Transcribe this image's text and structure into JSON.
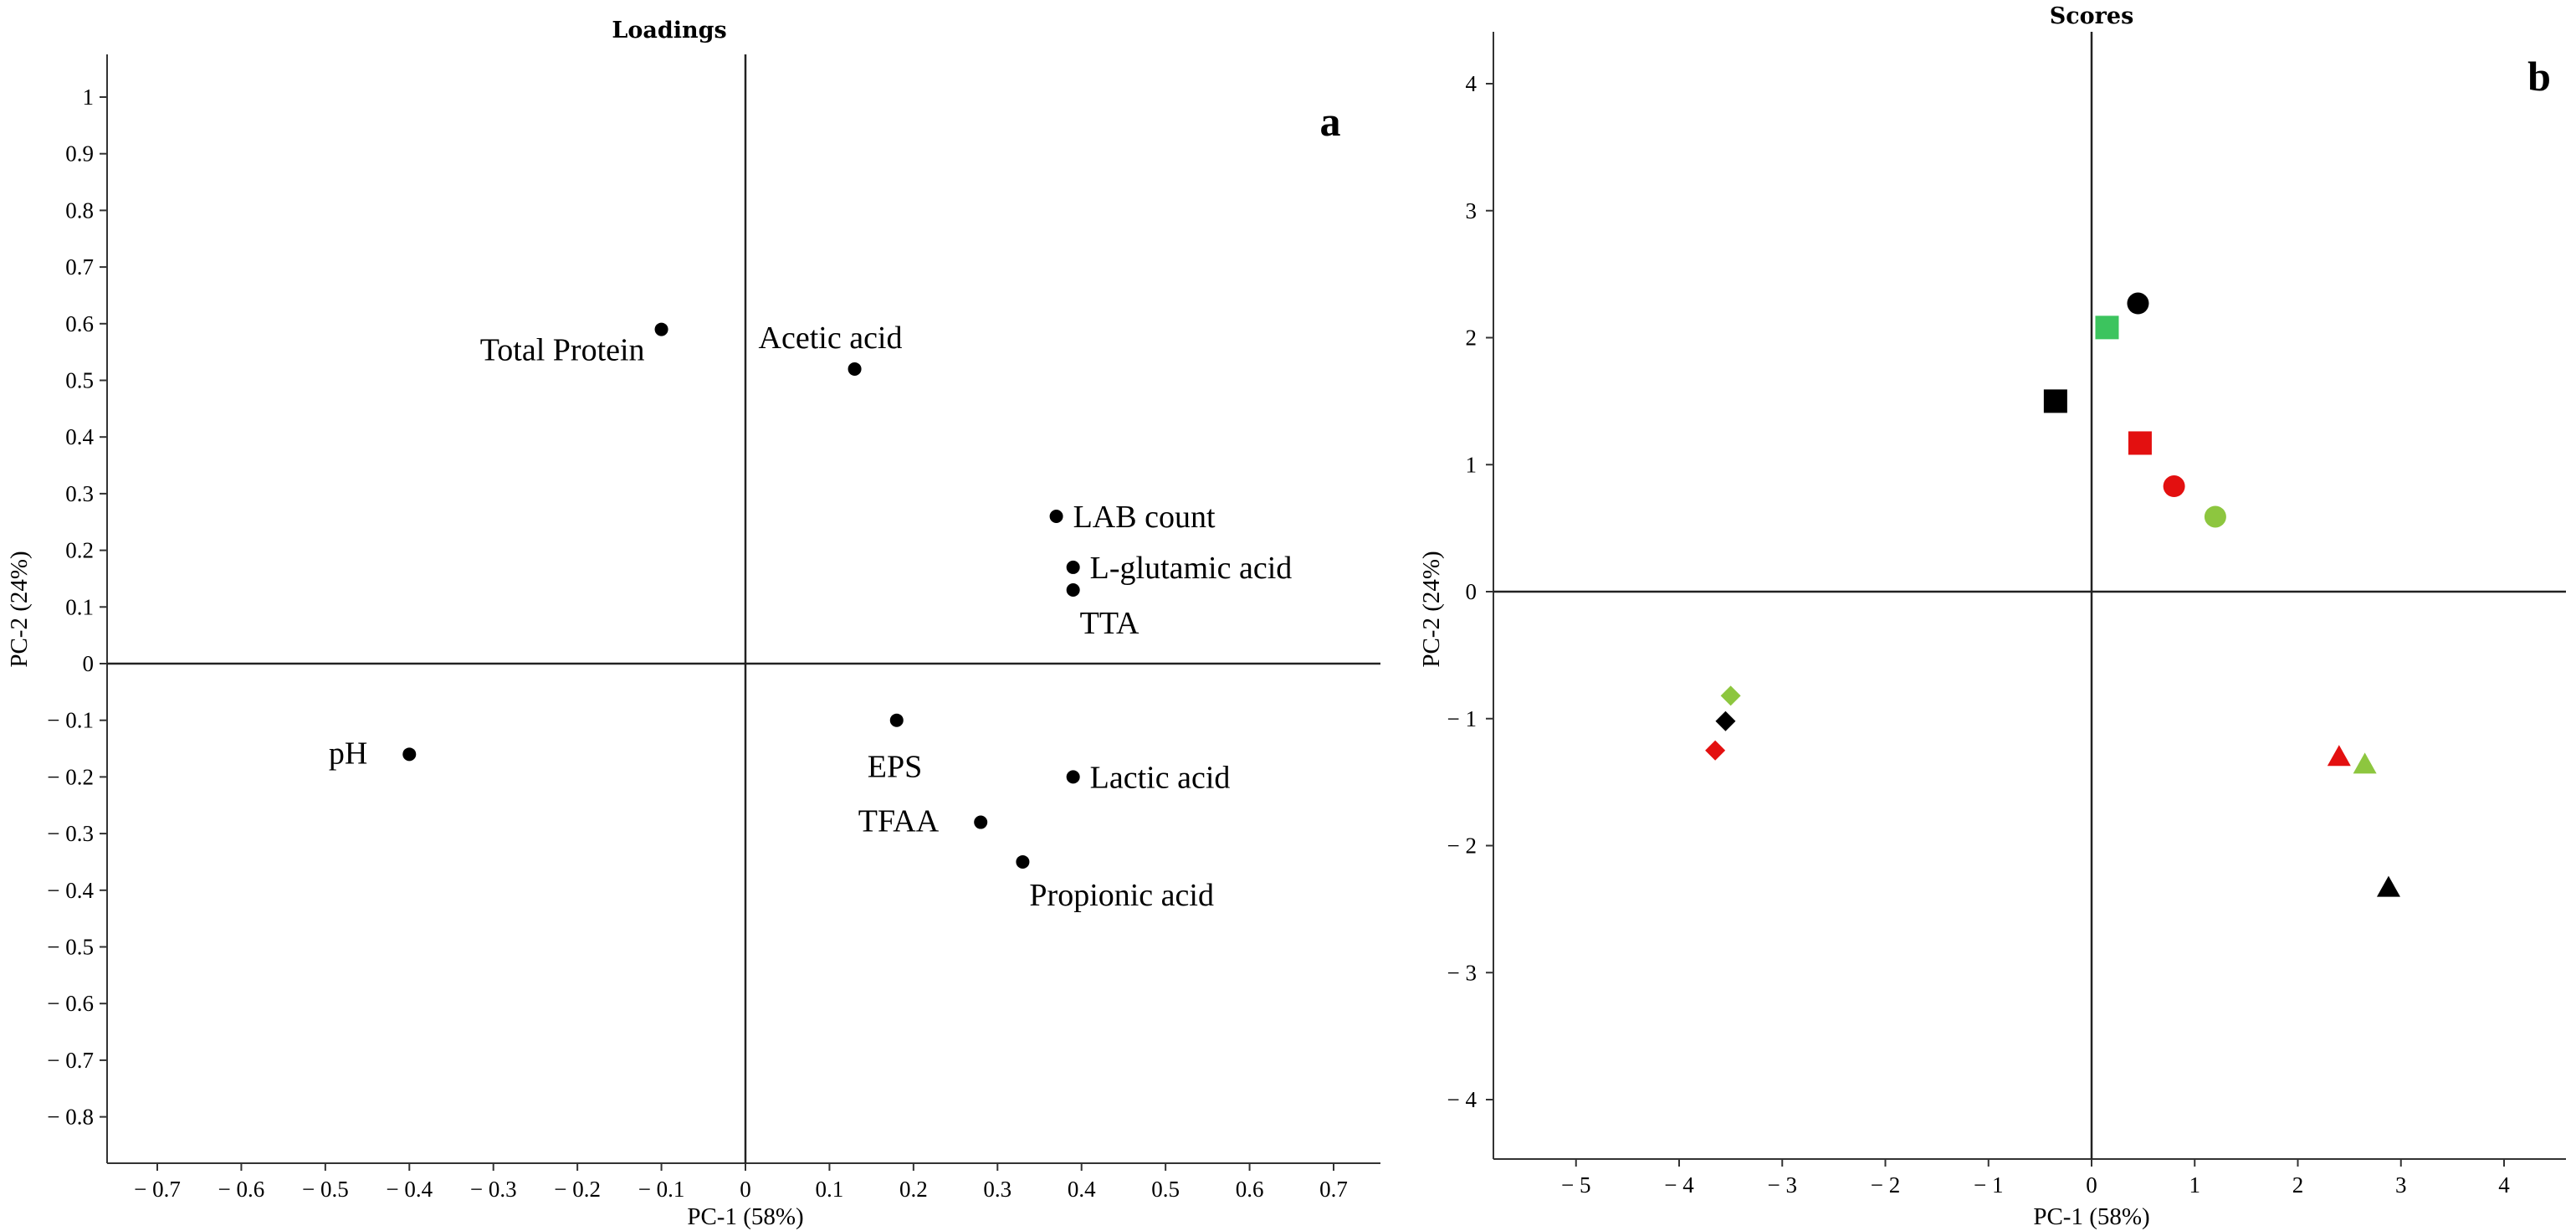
{
  "panel_a": {
    "title": "Loadings",
    "letter": "a",
    "xlabel": "PC-1 (58%)",
    "ylabel": "PC-2 (24%)"
  },
  "panel_b": {
    "title": "Scores",
    "letter": "b",
    "xlabel": "PC-1 (58%)",
    "ylabel": "PC-2 (24%)"
  },
  "chart_data": [
    {
      "type": "scatter",
      "title": "Loadings",
      "xlabel": "PC-1 (58%)",
      "ylabel": "PC-2 (24%)",
      "xlim": [
        -0.77,
        0.77
      ],
      "ylim": [
        -0.9,
        1.08
      ],
      "x_ticks": [
        {
          "v": -0.7,
          "label": "− 0.7"
        },
        {
          "v": -0.6,
          "label": "− 0.6"
        },
        {
          "v": -0.5,
          "label": "− 0.5"
        },
        {
          "v": -0.4,
          "label": "− 0.4"
        },
        {
          "v": -0.3,
          "label": "− 0.3"
        },
        {
          "v": -0.2,
          "label": "− 0.2"
        },
        {
          "v": -0.1,
          "label": "− 0.1"
        },
        {
          "v": 0,
          "label": "0"
        },
        {
          "v": 0.1,
          "label": "0.1"
        },
        {
          "v": 0.2,
          "label": "0.2"
        },
        {
          "v": 0.3,
          "label": "0.3"
        },
        {
          "v": 0.4,
          "label": "0.4"
        },
        {
          "v": 0.5,
          "label": "0.5"
        },
        {
          "v": 0.6,
          "label": "0.6"
        },
        {
          "v": 0.7,
          "label": "0.7"
        }
      ],
      "y_ticks": [
        {
          "v": 1,
          "label": "1"
        },
        {
          "v": 0.9,
          "label": "0.9"
        },
        {
          "v": 0.8,
          "label": "0.8"
        },
        {
          "v": 0.7,
          "label": "0.7"
        },
        {
          "v": 0.6,
          "label": "0.6"
        },
        {
          "v": 0.5,
          "label": "0.5"
        },
        {
          "v": 0.4,
          "label": "0.4"
        },
        {
          "v": 0.3,
          "label": "0.3"
        },
        {
          "v": 0.2,
          "label": "0.2"
        },
        {
          "v": 0.1,
          "label": "0.1"
        },
        {
          "v": 0,
          "label": "0"
        },
        {
          "v": -0.1,
          "label": "− 0.1"
        },
        {
          "v": -0.2,
          "label": "− 0.2"
        },
        {
          "v": -0.3,
          "label": "− 0.3"
        },
        {
          "v": -0.4,
          "label": "− 0.4"
        },
        {
          "v": -0.5,
          "label": "− 0.5"
        },
        {
          "v": -0.6,
          "label": "− 0.6"
        },
        {
          "v": -0.7,
          "label": "− 0.7"
        },
        {
          "v": -0.8,
          "label": "− 0.8"
        }
      ],
      "points": [
        {
          "label": "Total Protein",
          "x": -0.1,
          "y": 0.59,
          "anchor": "left-below"
        },
        {
          "label": "Acetic acid",
          "x": 0.13,
          "y": 0.52,
          "anchor": "above-left"
        },
        {
          "label": "LAB count",
          "x": 0.37,
          "y": 0.26,
          "anchor": "right"
        },
        {
          "label": "L-glutamic acid",
          "x": 0.39,
          "y": 0.17,
          "anchor": "right"
        },
        {
          "label": "TTA",
          "x": 0.39,
          "y": 0.13,
          "anchor": "below"
        },
        {
          "label": "pH",
          "x": -0.4,
          "y": -0.16,
          "anchor": "left"
        },
        {
          "label": "EPS",
          "x": 0.18,
          "y": -0.1,
          "anchor": "below-left"
        },
        {
          "label": "Lactic acid",
          "x": 0.39,
          "y": -0.2,
          "anchor": "right"
        },
        {
          "label": "TFAA",
          "x": 0.28,
          "y": -0.28,
          "anchor": "left"
        },
        {
          "label": "Propionic acid",
          "x": 0.33,
          "y": -0.35,
          "anchor": "below"
        }
      ]
    },
    {
      "type": "scatter",
      "title": "Scores",
      "xlabel": "PC-1 (58%)",
      "ylabel": "PC-2 (24%)",
      "xlim": [
        -5.6,
        4.45
      ],
      "ylim": [
        -4.47,
        4.45
      ],
      "x_ticks": [
        {
          "v": -5,
          "label": "− 5"
        },
        {
          "v": -4,
          "label": "− 4"
        },
        {
          "v": -3,
          "label": "− 3"
        },
        {
          "v": -2,
          "label": "− 2"
        },
        {
          "v": -1,
          "label": "− 1"
        },
        {
          "v": 0,
          "label": "0"
        },
        {
          "v": 1,
          "label": "1"
        },
        {
          "v": 2,
          "label": "2"
        },
        {
          "v": 3,
          "label": "3"
        },
        {
          "v": 4,
          "label": "4"
        }
      ],
      "y_ticks": [
        {
          "v": 4,
          "label": "4"
        },
        {
          "v": 3,
          "label": "3"
        },
        {
          "v": 2,
          "label": "2"
        },
        {
          "v": 1,
          "label": "1"
        },
        {
          "v": 0,
          "label": "0"
        },
        {
          "v": -1,
          "label": "− 1"
        },
        {
          "v": -2,
          "label": "− 2"
        },
        {
          "v": -3,
          "label": "− 3"
        },
        {
          "v": -4,
          "label": "− 4"
        }
      ],
      "points": [
        {
          "x": 0.45,
          "y": 2.27,
          "shape": "circle",
          "color": "#000000"
        },
        {
          "x": 0.15,
          "y": 2.08,
          "shape": "square",
          "color": "#3cc45e"
        },
        {
          "x": -0.35,
          "y": 1.5,
          "shape": "square",
          "color": "#000000"
        },
        {
          "x": 0.47,
          "y": 1.17,
          "shape": "square",
          "color": "#e31010"
        },
        {
          "x": 0.8,
          "y": 0.83,
          "shape": "circle",
          "color": "#e31010"
        },
        {
          "x": 1.2,
          "y": 0.59,
          "shape": "circle",
          "color": "#8dc63f"
        },
        {
          "x": -3.5,
          "y": -0.82,
          "shape": "diamond",
          "color": "#8dc63f"
        },
        {
          "x": -3.55,
          "y": -1.02,
          "shape": "diamond",
          "color": "#000000"
        },
        {
          "x": -3.65,
          "y": -1.25,
          "shape": "diamond",
          "color": "#e31010"
        },
        {
          "x": 2.4,
          "y": -1.3,
          "shape": "triangle",
          "color": "#e31010"
        },
        {
          "x": 2.65,
          "y": -1.36,
          "shape": "triangle",
          "color": "#8dc63f"
        },
        {
          "x": 2.88,
          "y": -2.33,
          "shape": "triangle",
          "color": "#000000"
        }
      ]
    }
  ]
}
